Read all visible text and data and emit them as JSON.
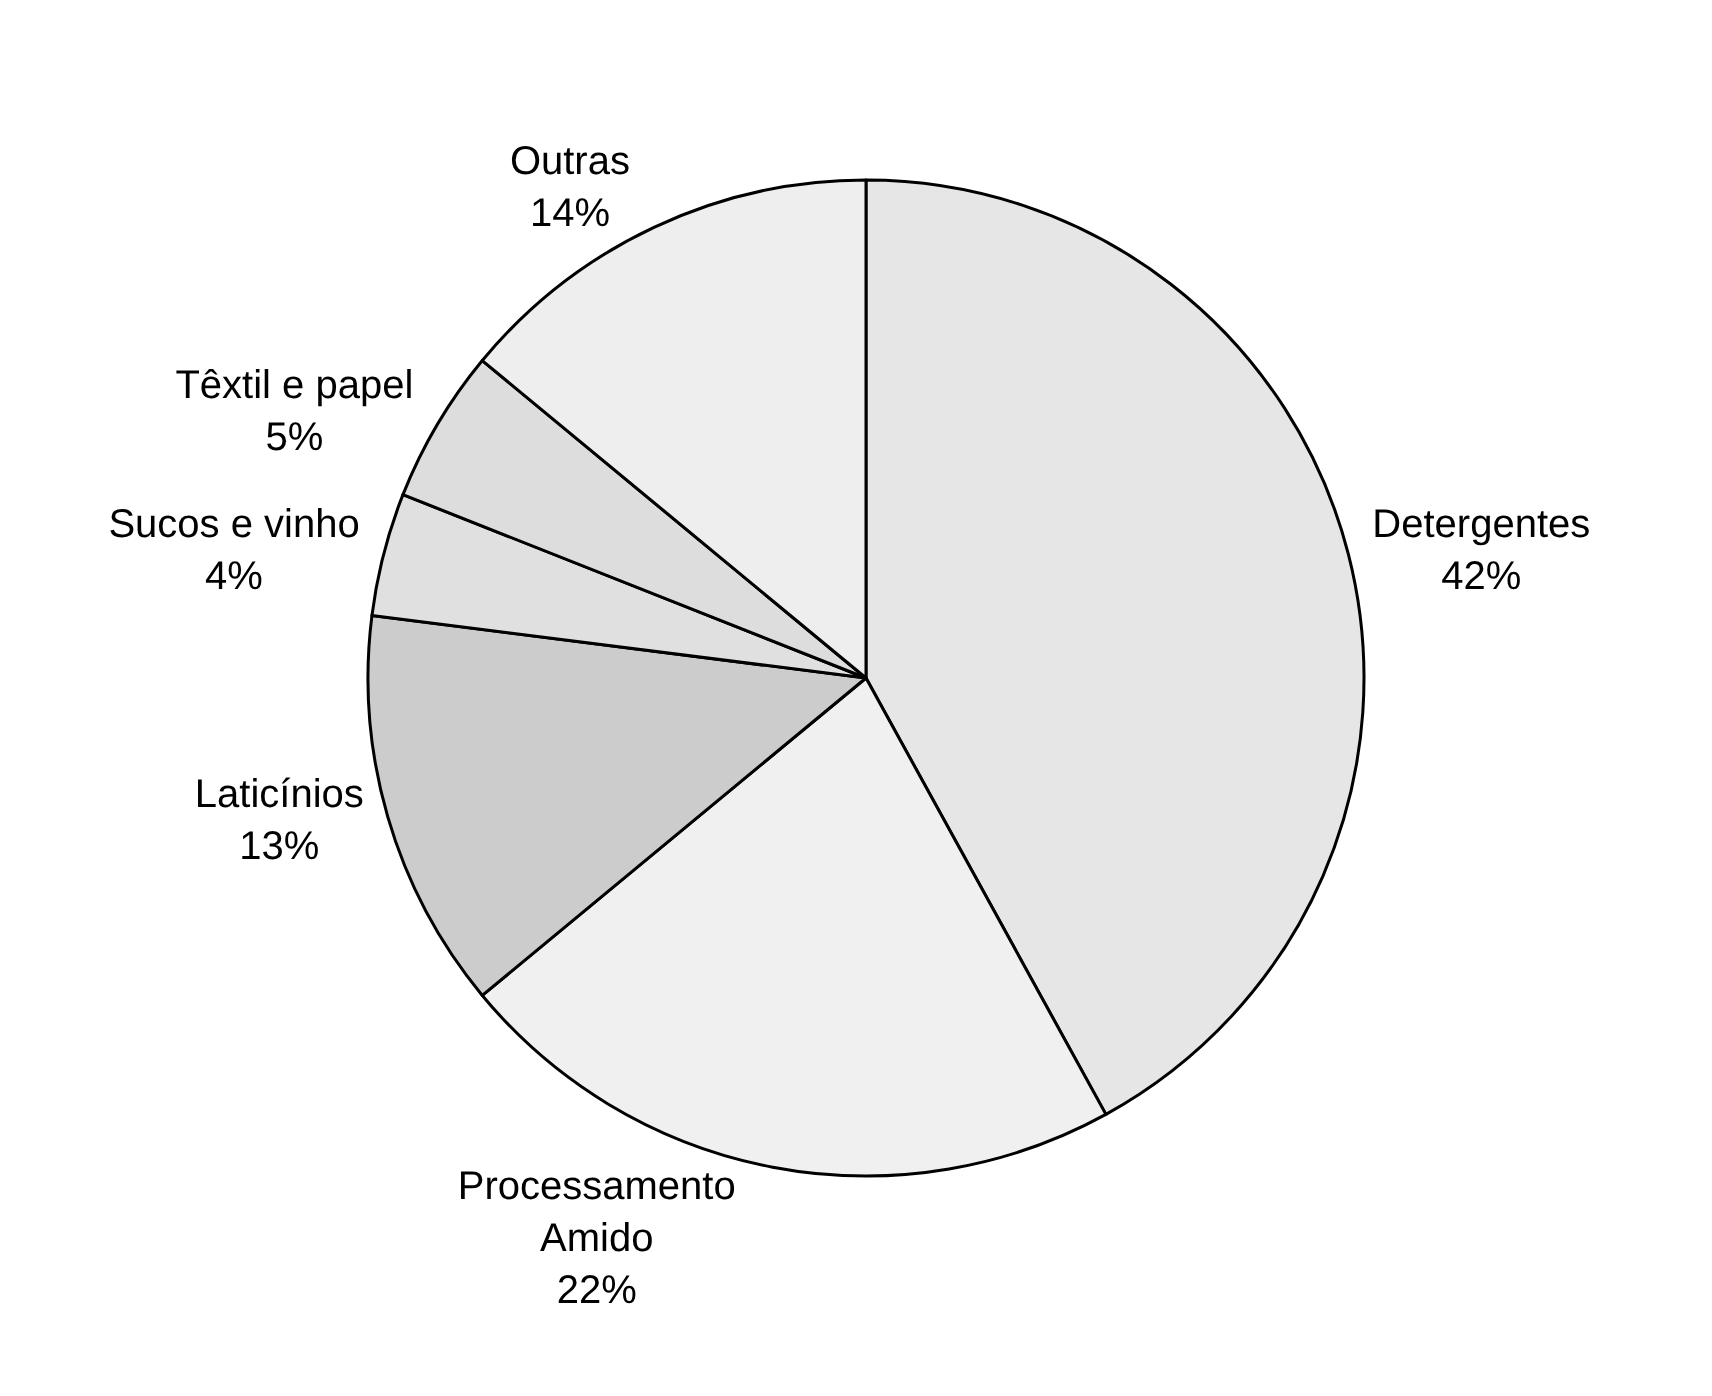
{
  "chart_data": {
    "type": "pie",
    "categories": [
      "Detergentes",
      "Processamento Amido",
      "Laticínios",
      "Sucos e vinho",
      "Têxtil e papel",
      "Outras"
    ],
    "values": [
      42,
      22,
      13,
      4,
      5,
      14
    ],
    "colors": [
      "#e6e6e6",
      "#f0f0f0",
      "#cccccc",
      "#e0e0e0",
      "#dddddd",
      "#eeeeee"
    ],
    "value_labels": [
      "42%",
      "22%",
      "13%",
      "4%",
      "5%",
      "14%"
    ],
    "legend": false
  }
}
